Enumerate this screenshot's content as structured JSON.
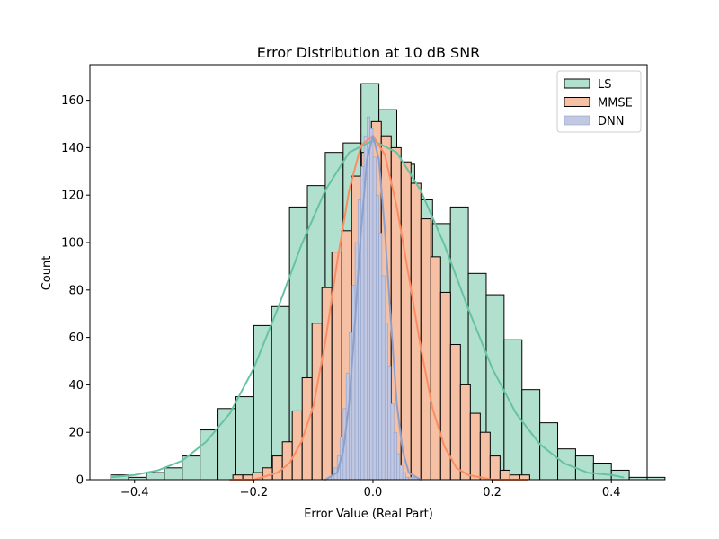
{
  "chart_data": {
    "type": "histogram",
    "title": "Error Distribution at 10 dB SNR",
    "xlabel": "Error Value (Real Part)",
    "ylabel": "Count",
    "xlim": [
      -0.475,
      0.46
    ],
    "ylim": [
      0,
      175
    ],
    "x_ticks": [
      -0.4,
      -0.2,
      0.0,
      0.2,
      0.4
    ],
    "x_tick_labels": [
      "−0.4",
      "−0.2",
      "0.0",
      "0.2",
      "0.4"
    ],
    "y_ticks": [
      0,
      20,
      40,
      60,
      80,
      100,
      120,
      140,
      160
    ],
    "y_tick_labels": [
      "0",
      "20",
      "40",
      "60",
      "80",
      "100",
      "120",
      "140",
      "160"
    ],
    "grid": false,
    "legend_position": "top-right",
    "series": [
      {
        "name": "LS",
        "fill": "#b2e0ce",
        "edge": "#000000",
        "kde_color": "#66c2a5",
        "bin_start": -0.44,
        "bin_width": 0.03,
        "counts": [
          2,
          1,
          3,
          5,
          10,
          21,
          30,
          35,
          65,
          73,
          115,
          124,
          138,
          142,
          167,
          156,
          133,
          118,
          108,
          115,
          87,
          78,
          59,
          38,
          24,
          13,
          10,
          7,
          4,
          1,
          1
        ],
        "kde_x": [
          -0.44,
          -0.4,
          -0.36,
          -0.32,
          -0.28,
          -0.24,
          -0.2,
          -0.16,
          -0.12,
          -0.08,
          -0.04,
          0.0,
          0.04,
          0.08,
          0.12,
          0.16,
          0.2,
          0.24,
          0.28,
          0.32,
          0.36,
          0.4,
          0.42
        ],
        "kde_y": [
          1,
          2,
          4,
          8,
          16,
          28,
          47,
          72,
          99,
          122,
          138,
          143,
          138,
          122,
          99,
          72,
          47,
          28,
          15,
          7,
          3,
          2,
          1
        ]
      },
      {
        "name": "MMSE",
        "fill": "#f6c0a4",
        "edge": "#000000",
        "kde_color": "#fc8d62",
        "bin_start": -0.235,
        "bin_width": 0.0166,
        "counts": [
          2,
          2,
          3,
          5,
          10,
          16,
          29,
          43,
          66,
          81,
          96,
          105,
          128,
          138,
          151,
          145,
          140,
          134,
          125,
          110,
          94,
          79,
          57,
          40,
          28,
          20,
          10,
          4,
          2,
          2
        ],
        "kde_x": [
          -0.24,
          -0.2,
          -0.16,
          -0.14,
          -0.12,
          -0.1,
          -0.08,
          -0.06,
          -0.04,
          -0.02,
          0.0,
          0.02,
          0.04,
          0.06,
          0.08,
          0.1,
          0.12,
          0.14,
          0.16,
          0.2,
          0.26
        ],
        "kde_y": [
          0,
          0,
          3,
          7,
          16,
          31,
          58,
          92,
          122,
          141,
          145,
          137,
          115,
          86,
          56,
          30,
          14,
          5,
          2,
          0,
          0
        ]
      },
      {
        "name": "DNN",
        "fill": "#c2c8e2",
        "edge": "#8da0cb",
        "kde_color": "#8da0cb",
        "bin_start": -0.075,
        "bin_width": 0.005,
        "counts": [
          1,
          2,
          5,
          10,
          18,
          30,
          45,
          62,
          82,
          100,
          118,
          132,
          145,
          153,
          148,
          136,
          120,
          104,
          86,
          66,
          48,
          32,
          20,
          11,
          6,
          3,
          1,
          1,
          1,
          1
        ],
        "kde_x": [
          -0.08,
          -0.06,
          -0.05,
          -0.04,
          -0.03,
          -0.02,
          -0.01,
          0.0,
          0.01,
          0.02,
          0.03,
          0.04,
          0.05,
          0.06,
          0.08
        ],
        "kde_y": [
          0,
          3,
          12,
          32,
          67,
          105,
          135,
          145,
          135,
          105,
          67,
          32,
          12,
          3,
          0
        ]
      }
    ]
  }
}
